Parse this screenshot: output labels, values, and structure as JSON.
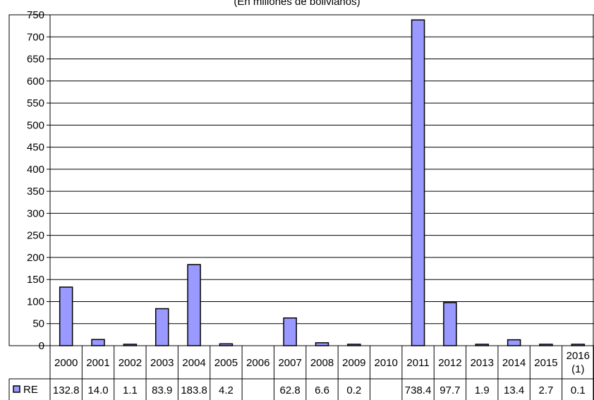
{
  "chart_data": {
    "type": "bar",
    "subtitle": "(En millones de bolivianos)",
    "categories": [
      "2000",
      "2001",
      "2002",
      "2003",
      "2004",
      "2005",
      "2006",
      "2007",
      "2008",
      "2009",
      "2010",
      "2011",
      "2012",
      "2013",
      "2014",
      "2015",
      "2016 (1)"
    ],
    "series": [
      {
        "name": "RE",
        "values": [
          132.8,
          14.0,
          1.1,
          83.9,
          183.8,
          4.2,
          null,
          62.8,
          6.6,
          0.2,
          null,
          738.4,
          97.7,
          1.9,
          13.4,
          2.7,
          0.1
        ],
        "labels": [
          "132.8",
          "14.0",
          "1.1",
          "83.9",
          "183.8",
          "4.2",
          "",
          "62.8",
          "6.6",
          "0.2",
          "",
          "738.4",
          "97.7",
          "1.9",
          "13.4",
          "2.7",
          "0.1"
        ],
        "color": "#9999FF"
      }
    ],
    "ylim": [
      0,
      750
    ],
    "yticks": [
      0,
      50,
      100,
      150,
      200,
      250,
      300,
      350,
      400,
      450,
      500,
      550,
      600,
      650,
      700,
      750
    ],
    "grid": true,
    "legend": "data-table"
  }
}
